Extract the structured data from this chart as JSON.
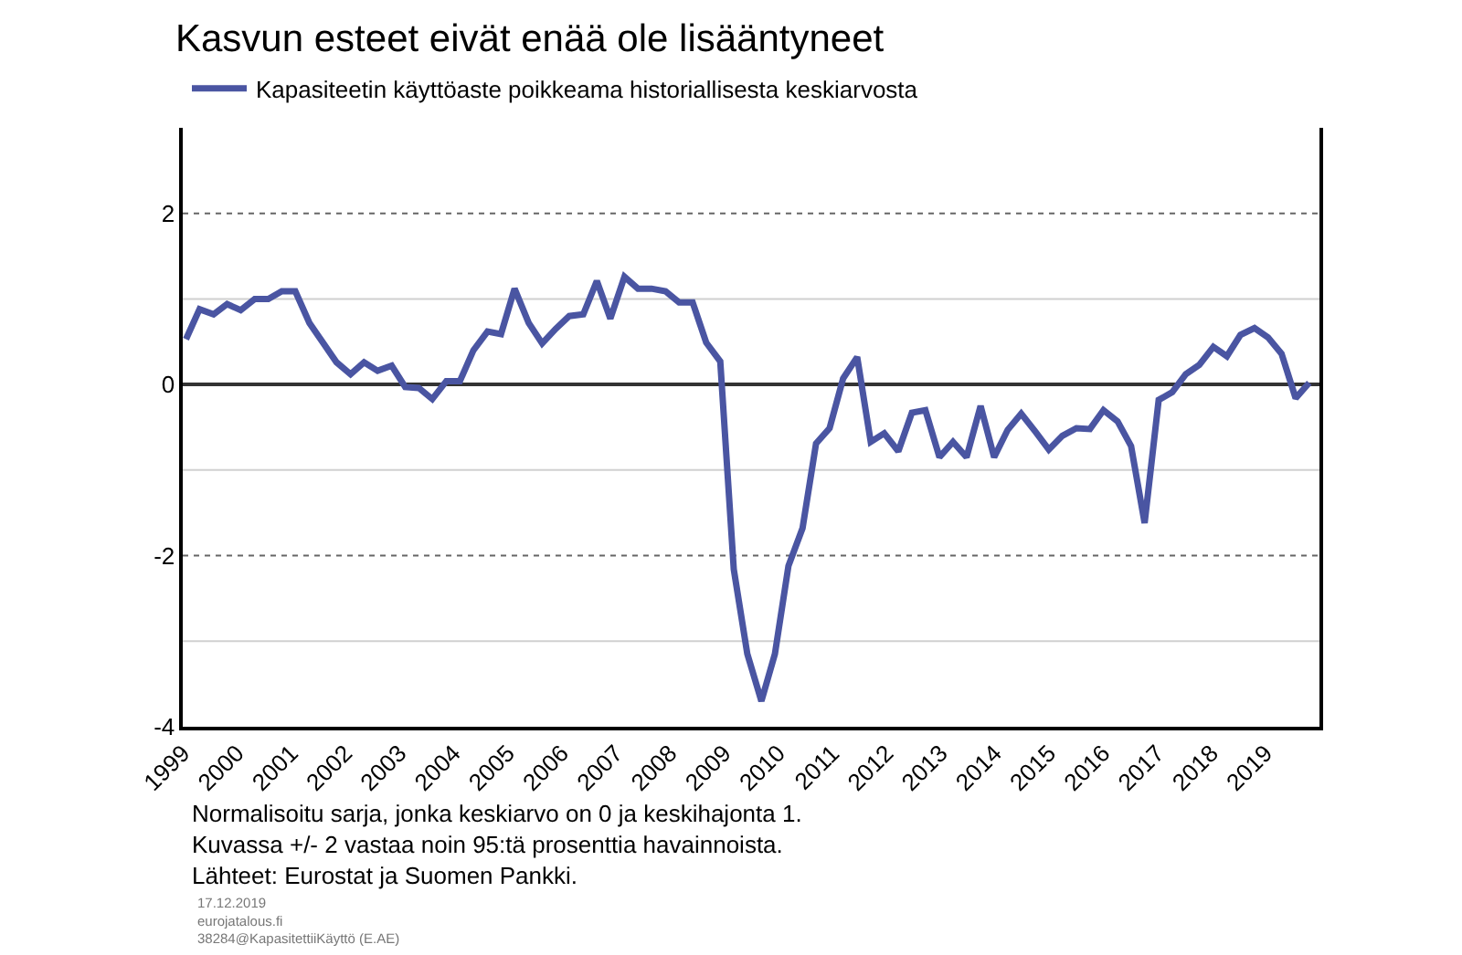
{
  "chart_data": {
    "type": "line",
    "title": "Kasvun esteet eivät enää ole lisääntyneet",
    "x": [
      1999.06,
      1999.31,
      1999.57,
      1999.82,
      2000.07,
      2000.33,
      2000.58,
      2000.83,
      2001.08,
      2001.34,
      2001.59,
      2001.84,
      2002.1,
      2002.35,
      2002.6,
      2002.86,
      2003.11,
      2003.36,
      2003.61,
      2003.87,
      2004.12,
      2004.37,
      2004.63,
      2004.88,
      2005.13,
      2005.39,
      2005.64,
      2005.89,
      2006.14,
      2006.4,
      2006.65,
      2006.9,
      2007.16,
      2007.41,
      2007.66,
      2007.92,
      2008.17,
      2008.42,
      2008.67,
      2008.93,
      2009.18,
      2009.43,
      2009.69,
      2009.94,
      2010.19,
      2010.45,
      2010.7,
      2010.95,
      2011.2,
      2011.46,
      2011.71,
      2011.96,
      2012.22,
      2012.47,
      2012.72,
      2012.98,
      2013.23,
      2013.48,
      2013.74,
      2013.99,
      2014.24,
      2014.49,
      2014.75,
      2015.0,
      2015.25,
      2015.51,
      2015.76,
      2016.01,
      2016.27,
      2016.52,
      2016.77,
      2017.03,
      2017.28,
      2017.53,
      2017.78,
      2018.04,
      2018.29,
      2018.54,
      2018.8,
      2019.05,
      2019.3,
      2019.56,
      2019.81
    ],
    "series": [
      {
        "name": "Kapasiteetin käyttöaste poikkeama historiallisesta keskiarvosta",
        "color": "#4a55a2",
        "values": [
          0.53,
          0.88,
          0.82,
          0.94,
          0.87,
          1.0,
          1.0,
          1.09,
          1.09,
          0.72,
          0.49,
          0.26,
          0.12,
          0.26,
          0.16,
          0.22,
          -0.03,
          -0.04,
          -0.17,
          0.04,
          0.04,
          0.4,
          0.62,
          0.59,
          1.12,
          0.72,
          0.48,
          0.65,
          0.8,
          0.82,
          1.21,
          0.77,
          1.26,
          1.12,
          1.12,
          1.09,
          0.96,
          0.96,
          0.49,
          0.27,
          -2.16,
          -3.15,
          -3.7,
          -3.15,
          -2.12,
          -1.68,
          -0.69,
          -0.51,
          0.07,
          0.32,
          -0.67,
          -0.57,
          -0.78,
          -0.33,
          -0.3,
          -0.85,
          -0.67,
          -0.85,
          -0.25,
          -0.85,
          -0.53,
          -0.34,
          -0.55,
          -0.76,
          -0.6,
          -0.51,
          -0.52,
          -0.3,
          -0.43,
          -0.72,
          -1.62,
          -0.18,
          -0.09,
          0.12,
          0.23,
          0.44,
          0.33,
          0.58,
          0.66,
          0.55,
          0.36,
          -0.16,
          0.02
        ]
      }
    ],
    "xlim": [
      1999,
      2020
    ],
    "xticks": [
      1999,
      2000,
      2001,
      2002,
      2003,
      2004,
      2005,
      2006,
      2007,
      2008,
      2009,
      2010,
      2011,
      2012,
      2013,
      2014,
      2015,
      2016,
      2017,
      2018,
      2019
    ],
    "ylim": [
      -4,
      3
    ],
    "yticks": [
      -4,
      {
        "value": -3,
        "label": null
      },
      -2,
      {
        "value": -1,
        "label": null
      },
      0,
      {
        "value": 1,
        "label": null
      },
      2
    ],
    "grid": "y",
    "legend": "top left",
    "marker": "none",
    "line_style": "solid",
    "annotations": [
      "Normalisoitu sarja, jonka keskiarvo on 0 ja keskihajonta 1.\nKuvassa +/- 2 vastaa noin 95:tä prosenttia havainnoista.\nLähteet: Eurostat ja Suomen Pankki.",
      "17.12.2019\neurojatalous.fi\n38284@KapasitettiiKäyttö (E.AE)"
    ]
  }
}
